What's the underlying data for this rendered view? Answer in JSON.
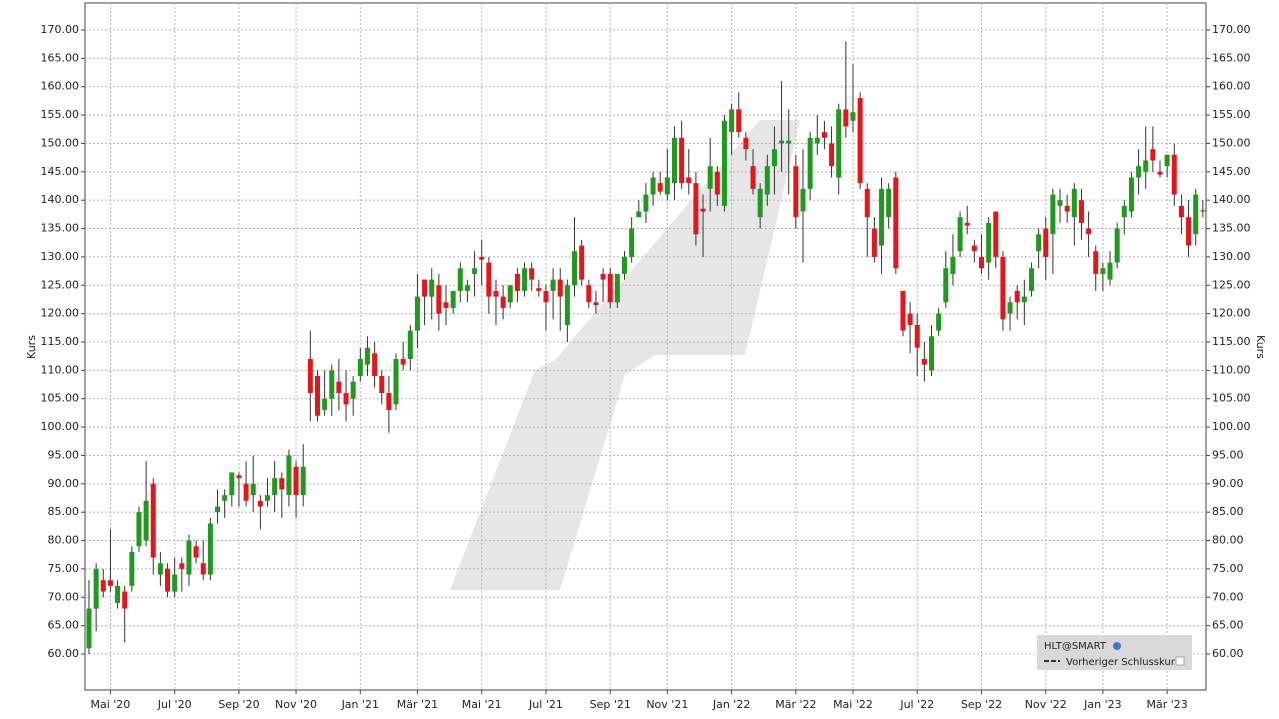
{
  "chart_data": {
    "type": "candlestick",
    "ylabel": "Kurs",
    "legend": {
      "entries": [
        "HLT@SMART",
        "Vorheriger Schlusskurs"
      ],
      "position": "lower right"
    },
    "up_color": "#1f9a1f",
    "down_color": "#e8141c",
    "grid": true,
    "ylim": [
      53.65,
      174.76
    ],
    "yticks": [
      {
        "value": 60,
        "label": "60.00"
      },
      {
        "value": 65,
        "label": "65.00"
      },
      {
        "value": 70,
        "label": "70.00"
      },
      {
        "value": 75,
        "label": "75.00"
      },
      {
        "value": 80,
        "label": "80.00"
      },
      {
        "value": 85,
        "label": "85.00"
      },
      {
        "value": 90,
        "label": "90.00"
      },
      {
        "value": 95,
        "label": "95.00"
      },
      {
        "value": 100,
        "label": "100.00"
      },
      {
        "value": 105,
        "label": "105.00"
      },
      {
        "value": 110,
        "label": "110.00"
      },
      {
        "value": 115,
        "label": "115.00"
      },
      {
        "value": 120,
        "label": "120.00"
      },
      {
        "value": 125,
        "label": "125.00"
      },
      {
        "value": 130,
        "label": "130.00"
      },
      {
        "value": 135,
        "label": "135.00"
      },
      {
        "value": 140,
        "label": "140.00"
      },
      {
        "value": 145,
        "label": "145.00"
      },
      {
        "value": 150,
        "label": "150.00"
      },
      {
        "value": 155,
        "label": "155.00"
      },
      {
        "value": 160,
        "label": "160.00"
      },
      {
        "value": 165,
        "label": "165.00"
      },
      {
        "value": 170,
        "label": "170.00"
      }
    ],
    "month_ticks": [
      {
        "index": 3,
        "label": "Mai '20"
      },
      {
        "index": 12,
        "label": "Jul '20"
      },
      {
        "index": 21,
        "label": "Sep '20"
      },
      {
        "index": 29,
        "label": "Nov '20"
      },
      {
        "index": 38,
        "label": "Jan '21"
      },
      {
        "index": 46,
        "label": "Mär '21"
      },
      {
        "index": 55,
        "label": "Mai '21"
      },
      {
        "index": 64,
        "label": "Jul '21"
      },
      {
        "index": 73,
        "label": "Sep '21"
      },
      {
        "index": 81,
        "label": "Nov '21"
      },
      {
        "index": 90,
        "label": "Jan '22"
      },
      {
        "index": 99,
        "label": "Mär '22"
      },
      {
        "index": 107,
        "label": "Mai '22"
      },
      {
        "index": 116,
        "label": "Jul '22"
      },
      {
        "index": 125,
        "label": "Sep '22"
      },
      {
        "index": 134,
        "label": "Nov '22"
      },
      {
        "index": 142,
        "label": "Jan '23"
      },
      {
        "index": 151,
        "label": "Mär '23"
      }
    ],
    "candles": [
      [
        61,
        73,
        60,
        68
      ],
      [
        68,
        76,
        64,
        75
      ],
      [
        73,
        75,
        70,
        71
      ],
      [
        73,
        82,
        71,
        72
      ],
      [
        69,
        73,
        68,
        72
      ],
      [
        71,
        72,
        62,
        68
      ],
      [
        72,
        79,
        71,
        78
      ],
      [
        79,
        86,
        78,
        85
      ],
      [
        80,
        94,
        79,
        87
      ],
      [
        90,
        91,
        74,
        77
      ],
      [
        74,
        78,
        72,
        76
      ],
      [
        75,
        76,
        70,
        71
      ],
      [
        71,
        77,
        70,
        74
      ],
      [
        76,
        77,
        71,
        75
      ],
      [
        74,
        81,
        72,
        80
      ],
      [
        79,
        80,
        76,
        77
      ],
      [
        76,
        80,
        73,
        74
      ],
      [
        74,
        84,
        73,
        83
      ],
      [
        85,
        89,
        83,
        86
      ],
      [
        87,
        89,
        84,
        88
      ],
      [
        88,
        92,
        86,
        92
      ],
      [
        91.5,
        92,
        86,
        91
      ],
      [
        90,
        94,
        86,
        87
      ],
      [
        88,
        95,
        85,
        90
      ],
      [
        87,
        88,
        82,
        86
      ],
      [
        87,
        91,
        86,
        88
      ],
      [
        88,
        94,
        85,
        91
      ],
      [
        91,
        92,
        84,
        89
      ],
      [
        88,
        96,
        86,
        95
      ],
      [
        93,
        94,
        84,
        88
      ],
      [
        88,
        97,
        86,
        93
      ],
      [
        112,
        117,
        101,
        106
      ],
      [
        109,
        110,
        101,
        102
      ],
      [
        103,
        110,
        102,
        105
      ],
      [
        105,
        111,
        102,
        110
      ],
      [
        108,
        112,
        103,
        106
      ],
      [
        106,
        110,
        101,
        104
      ],
      [
        105,
        109,
        102,
        108
      ],
      [
        109,
        114,
        108,
        112
      ],
      [
        111,
        116,
        109,
        114
      ],
      [
        113,
        115,
        107,
        109
      ],
      [
        109,
        110,
        104,
        106
      ],
      [
        106,
        109,
        99,
        103
      ],
      [
        104,
        113,
        103,
        112
      ],
      [
        112,
        115,
        110,
        111
      ],
      [
        112,
        118,
        110,
        117
      ],
      [
        117,
        127,
        114,
        123
      ],
      [
        126,
        126,
        118,
        123
      ],
      [
        123,
        128,
        119,
        126
      ],
      [
        125,
        127,
        117,
        120
      ],
      [
        122,
        125,
        118,
        121
      ],
      [
        121,
        124,
        120,
        124
      ],
      [
        124,
        129,
        122,
        128
      ],
      [
        124,
        126,
        122,
        125
      ],
      [
        127,
        131,
        123,
        128
      ],
      [
        130,
        133,
        125,
        129.5
      ],
      [
        129,
        130,
        120,
        123
      ],
      [
        124,
        126,
        118,
        123
      ],
      [
        123,
        125,
        119,
        121
      ],
      [
        122,
        125,
        121,
        125
      ],
      [
        127,
        128,
        122,
        124
      ],
      [
        124,
        129,
        123,
        128
      ],
      [
        128,
        129,
        124,
        126
      ],
      [
        124.5,
        126,
        123,
        124
      ],
      [
        124,
        125,
        117,
        122
      ],
      [
        124,
        128,
        119,
        126
      ],
      [
        126,
        128,
        117,
        123
      ],
      [
        118,
        126,
        115,
        125
      ],
      [
        125,
        137,
        123,
        131
      ],
      [
        132,
        133,
        125,
        126
      ],
      [
        125,
        126,
        121,
        122
      ],
      [
        122,
        124,
        120,
        121.5
      ],
      [
        127,
        128,
        122,
        126
      ],
      [
        127,
        128,
        121,
        122
      ],
      [
        122,
        127,
        121,
        127
      ],
      [
        127,
        131,
        126,
        130
      ],
      [
        130,
        137,
        129,
        135
      ],
      [
        137,
        140,
        137,
        138
      ],
      [
        138,
        143,
        136,
        141
      ],
      [
        141,
        145,
        139,
        144
      ],
      [
        143,
        145,
        141,
        141.5
      ],
      [
        141,
        149,
        140,
        144
      ],
      [
        143,
        153,
        140,
        151
      ],
      [
        151,
        154,
        142,
        143
      ],
      [
        144,
        149,
        141,
        143
      ],
      [
        143,
        145,
        132,
        134
      ],
      [
        138.5,
        141,
        130,
        138
      ],
      [
        142,
        151,
        138,
        146
      ],
      [
        145,
        146,
        139,
        141
      ],
      [
        139,
        155,
        138,
        154
      ],
      [
        152,
        157,
        148,
        156
      ],
      [
        156,
        159,
        151,
        152
      ],
      [
        151,
        152,
        147,
        149
      ],
      [
        146,
        149,
        141,
        142
      ],
      [
        137,
        143,
        135,
        142
      ],
      [
        141,
        148,
        139,
        146
      ],
      [
        146,
        153,
        141,
        149
      ],
      [
        150,
        161,
        145,
        150.5
      ],
      [
        150,
        156,
        141,
        150.5
      ],
      [
        146,
        148,
        135,
        137
      ],
      [
        138,
        149,
        129,
        142
      ],
      [
        142,
        152,
        140,
        151
      ],
      [
        150,
        155,
        148,
        151
      ],
      [
        152,
        154,
        149,
        151
      ],
      [
        150,
        153,
        144,
        146
      ],
      [
        144,
        157,
        141,
        156
      ],
      [
        156,
        168,
        151,
        153
      ],
      [
        154,
        164,
        152,
        155.5
      ],
      [
        158,
        159,
        142,
        143
      ],
      [
        142,
        143,
        130,
        137
      ],
      [
        135,
        137,
        129,
        130
      ],
      [
        132,
        144,
        127,
        142
      ],
      [
        137,
        143,
        135,
        142
      ],
      [
        144,
        145,
        127,
        128
      ],
      [
        124,
        124,
        116,
        117
      ],
      [
        120,
        122,
        113,
        118
      ],
      [
        118,
        120,
        109,
        114
      ],
      [
        112,
        115,
        108,
        111
      ],
      [
        110,
        118,
        109,
        116
      ],
      [
        117,
        121,
        116,
        120
      ],
      [
        122,
        131,
        121,
        128
      ],
      [
        127,
        134,
        125,
        130
      ],
      [
        131,
        138,
        130,
        137
      ],
      [
        136,
        139,
        134,
        135.5
      ],
      [
        132,
        133,
        129,
        131
      ],
      [
        130,
        134,
        127,
        128
      ],
      [
        129,
        137,
        126,
        136
      ],
      [
        138,
        138,
        128,
        130
      ],
      [
        130,
        131,
        117,
        119
      ],
      [
        120,
        123,
        117,
        122
      ],
      [
        124,
        125,
        119,
        122
      ],
      [
        122,
        126,
        118,
        123
      ],
      [
        124,
        129,
        123,
        128
      ],
      [
        131,
        135,
        128,
        134
      ],
      [
        135,
        137,
        126,
        130
      ],
      [
        134,
        142,
        127,
        141
      ],
      [
        139,
        142,
        136,
        140
      ],
      [
        139,
        141,
        136,
        138
      ],
      [
        137,
        143,
        132,
        142
      ],
      [
        140,
        142,
        133,
        136
      ],
      [
        135,
        138,
        130,
        134
      ],
      [
        131,
        132,
        124,
        127
      ],
      [
        127,
        129,
        124,
        128
      ],
      [
        126,
        131,
        125,
        129
      ],
      [
        129,
        136,
        128,
        135
      ],
      [
        137,
        140,
        134,
        139
      ],
      [
        138,
        145,
        137,
        144
      ],
      [
        144,
        149,
        141,
        146
      ],
      [
        145,
        153,
        142,
        147
      ],
      [
        149,
        153,
        145,
        147
      ],
      [
        145,
        147,
        144,
        144.5
      ],
      [
        146,
        148,
        144,
        148
      ],
      [
        148,
        150,
        139,
        141
      ],
      [
        139,
        141,
        134,
        137
      ],
      [
        137,
        140,
        130,
        132
      ],
      [
        134,
        142,
        132,
        141
      ],
      [
        138.2,
        140,
        137,
        138
      ]
    ]
  }
}
